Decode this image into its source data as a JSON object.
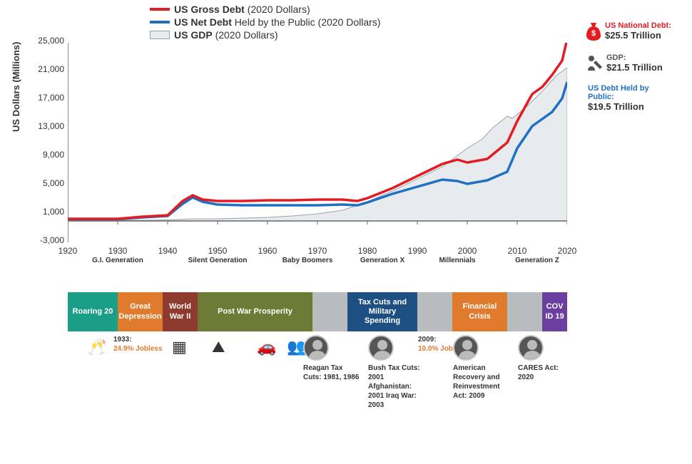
{
  "chart": {
    "type": "line+area",
    "y_axis_label": "US Dollars (Millions)",
    "title_fontsize": 13,
    "label_fontsize": 12,
    "ylim": [
      -3000,
      25000
    ],
    "y_ticks": [
      -3000,
      1000,
      5000,
      9000,
      13000,
      17000,
      21000,
      25000
    ],
    "xlim": [
      1920,
      2020
    ],
    "x_ticks": [
      1920,
      1930,
      1940,
      1950,
      1960,
      1970,
      1980,
      1990,
      2000,
      2010,
      2020
    ],
    "background_color": "#ffffff",
    "axis_color": "#666666",
    "line_width": 3.5,
    "series": {
      "gross_debt": {
        "label_prefix": "US Gross Debt",
        "label_suffix": " (2020 Dollars)",
        "color": "#e31b23",
        "points": [
          [
            1920,
            300
          ],
          [
            1930,
            300
          ],
          [
            1935,
            600
          ],
          [
            1940,
            800
          ],
          [
            1943,
            2800
          ],
          [
            1945,
            3600
          ],
          [
            1947,
            3000
          ],
          [
            1950,
            2800
          ],
          [
            1955,
            2800
          ],
          [
            1960,
            2900
          ],
          [
            1965,
            2900
          ],
          [
            1970,
            3000
          ],
          [
            1975,
            3000
          ],
          [
            1978,
            2800
          ],
          [
            1980,
            3200
          ],
          [
            1985,
            4600
          ],
          [
            1990,
            6300
          ],
          [
            1995,
            8000
          ],
          [
            1998,
            8600
          ],
          [
            2000,
            8200
          ],
          [
            2004,
            8700
          ],
          [
            2008,
            11000
          ],
          [
            2010,
            14000
          ],
          [
            2013,
            17800
          ],
          [
            2015,
            18800
          ],
          [
            2017,
            20500
          ],
          [
            2019,
            22500
          ],
          [
            2020,
            25500
          ]
        ]
      },
      "net_debt": {
        "label_prefix": "US Net Debt",
        "label_suffix": " Held by the Public (2020 Dollars)",
        "color": "#1f6fc2",
        "points": [
          [
            1920,
            250
          ],
          [
            1930,
            250
          ],
          [
            1935,
            500
          ],
          [
            1940,
            700
          ],
          [
            1943,
            2400
          ],
          [
            1945,
            3300
          ],
          [
            1947,
            2700
          ],
          [
            1950,
            2300
          ],
          [
            1955,
            2200
          ],
          [
            1960,
            2200
          ],
          [
            1965,
            2200
          ],
          [
            1970,
            2200
          ],
          [
            1975,
            2300
          ],
          [
            1978,
            2200
          ],
          [
            1980,
            2600
          ],
          [
            1985,
            3800
          ],
          [
            1990,
            4800
          ],
          [
            1995,
            5800
          ],
          [
            1998,
            5600
          ],
          [
            2000,
            5200
          ],
          [
            2004,
            5700
          ],
          [
            2008,
            6900
          ],
          [
            2010,
            10200
          ],
          [
            2013,
            13300
          ],
          [
            2015,
            14300
          ],
          [
            2017,
            15300
          ],
          [
            2019,
            17200
          ],
          [
            2020,
            19500
          ]
        ]
      },
      "gdp": {
        "label_prefix": "US GDP",
        "label_suffix": " (2020 Dollars)",
        "fill_color": "#e8ebee",
        "stroke_color": "#9aa3ab",
        "points": [
          [
            1920,
            100
          ],
          [
            1930,
            100
          ],
          [
            1935,
            100
          ],
          [
            1940,
            150
          ],
          [
            1945,
            300
          ],
          [
            1950,
            300
          ],
          [
            1955,
            400
          ],
          [
            1960,
            500
          ],
          [
            1965,
            700
          ],
          [
            1970,
            1000
          ],
          [
            1975,
            1500
          ],
          [
            1980,
            2700
          ],
          [
            1985,
            4200
          ],
          [
            1990,
            5900
          ],
          [
            1995,
            7600
          ],
          [
            2000,
            10200
          ],
          [
            2003,
            11500
          ],
          [
            2005,
            13000
          ],
          [
            2008,
            14700
          ],
          [
            2009,
            14400
          ],
          [
            2012,
            16100
          ],
          [
            2015,
            18200
          ],
          [
            2018,
            20500
          ],
          [
            2020,
            21500
          ]
        ]
      }
    },
    "generation_labels": [
      {
        "x": 1930,
        "text": "G.I. Generation"
      },
      {
        "x": 1950,
        "text": "Silent Generation"
      },
      {
        "x": 1968,
        "text": "Baby Boomers"
      },
      {
        "x": 1983,
        "text": "Generation X"
      },
      {
        "x": 1998,
        "text": "Millennials"
      },
      {
        "x": 2014,
        "text": "Generation Z"
      }
    ]
  },
  "callouts": [
    {
      "title": "US National Debt:",
      "value": "$25.5 Trillion",
      "title_color": "#e31b23",
      "icon": "money-bag"
    },
    {
      "title": "GDP:",
      "value": "$21.5 Trillion",
      "title_color": "#555555",
      "icon": "worker"
    },
    {
      "title": "US Debt Held by Public:",
      "value": "$19.5 Trillion",
      "title_color": "#1f6fc2",
      "icon": ""
    }
  ],
  "timeline": {
    "segments": [
      {
        "label": "Roaring 20",
        "width_pct": 10,
        "color": "#1a9e87"
      },
      {
        "label": "Great Depression",
        "width_pct": 9,
        "color": "#e07b2e"
      },
      {
        "label": "World War II",
        "width_pct": 7,
        "color": "#8f3a2e"
      },
      {
        "label": "Post War Prosperity",
        "width_pct": 23,
        "color": "#6b7a35"
      },
      {
        "label": "",
        "width_pct": 7,
        "color": "#b9bcbf"
      },
      {
        "label": "Tax Cuts and Military Spending",
        "width_pct": 14,
        "color": "#1d4f82"
      },
      {
        "label": "",
        "width_pct": 7,
        "color": "#b9bcbf"
      },
      {
        "label": "Financial Crisis",
        "width_pct": 11,
        "color": "#e07b2e"
      },
      {
        "label": "",
        "width_pct": 7,
        "color": "#b9bcbf"
      },
      {
        "label": "COV ID 19",
        "width_pct": 5,
        "color": "#6b3fa0"
      }
    ],
    "captions": [
      {
        "x_pct": 12,
        "highlight": "1933:",
        "highlight2": "24.9% Jobless",
        "color": "#e07b2e"
      },
      {
        "x_pct": 50,
        "text": "Reagan Tax Cuts: 1981, 1986",
        "photo": true
      },
      {
        "x_pct": 63,
        "text": "Bush Tax Cuts: 2001 Afghanistan: 2001 Iraq War: 2003",
        "photo": true
      },
      {
        "x_pct": 73,
        "highlight": "2009:",
        "highlight2": "10.0% Jobless",
        "color": "#e07b2e"
      },
      {
        "x_pct": 80,
        "text": "American Recovery and Reinvestment Act: 2009",
        "photo": true
      },
      {
        "x_pct": 93,
        "text": "CARES Act: 2020",
        "photo": true
      }
    ],
    "icons": [
      {
        "x_pct": 3,
        "glyph": "🥂"
      },
      {
        "x_pct": 20,
        "glyph": "▦"
      },
      {
        "x_pct": 28,
        "glyph": "⛰"
      },
      {
        "x_pct": 37,
        "glyph": "🚗"
      },
      {
        "x_pct": 43,
        "glyph": "👥"
      },
      {
        "x_pct": 48,
        "glyph": "▢"
      }
    ]
  }
}
